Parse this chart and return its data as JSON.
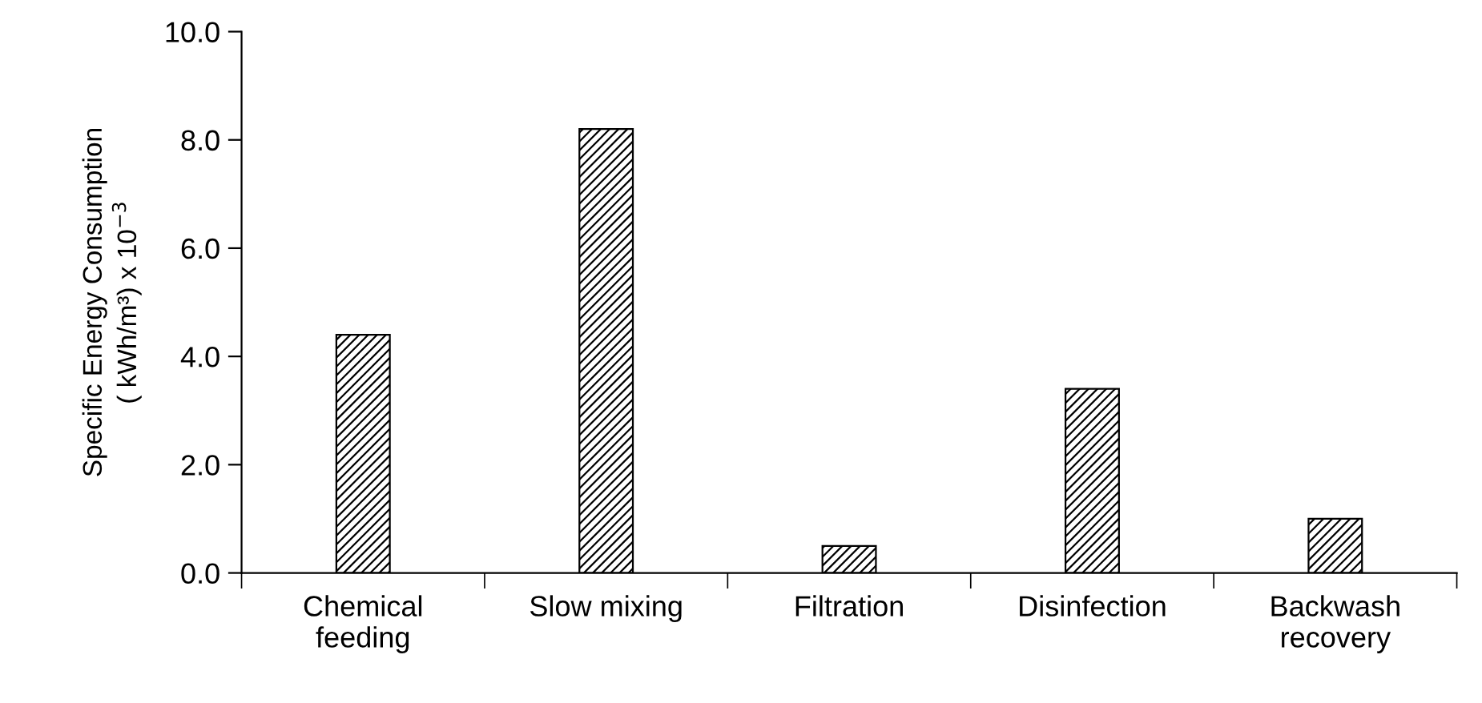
{
  "chart_data": {
    "type": "bar",
    "ylabel": "Specific Energy Consumption\n( kWh/m³) x 10$^{−3}$",
    "categories": [
      "Chemical\nfeeding",
      "Slow mixing",
      "Filtration",
      "Disinfection",
      "Backwash\nrecovery"
    ],
    "values": [
      4.4,
      8.2,
      0.5,
      3.4,
      1.0
    ],
    "color": "#000000",
    "ylim": [
      0,
      10
    ],
    "yticks": [
      {
        "value": 0,
        "label": "0.0"
      },
      {
        "value": 2,
        "label": "2.0"
      },
      {
        "value": 4,
        "label": "4.0"
      },
      {
        "value": 6,
        "label": "6.0"
      },
      {
        "value": 8,
        "label": "8.0"
      },
      {
        "value": 10,
        "label": "10.0"
      }
    ],
    "grid": false
  }
}
